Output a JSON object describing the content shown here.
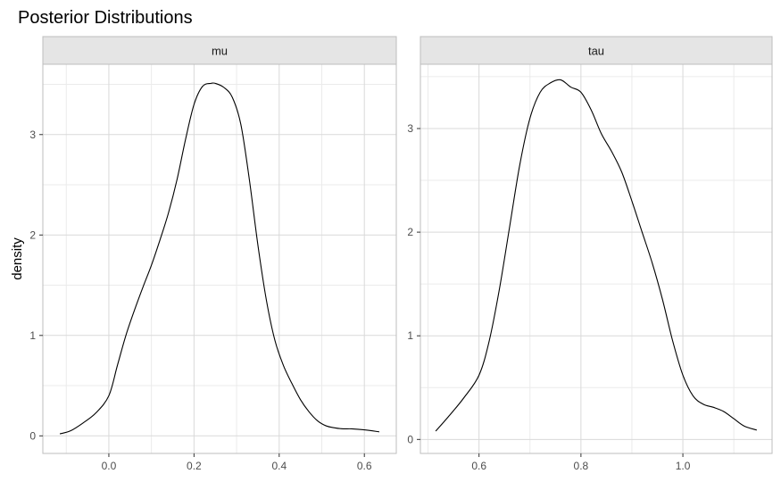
{
  "chart_data": {
    "type": "line",
    "title": "Posterior Distributions",
    "ylabel": "density",
    "xlabel": "",
    "facets": [
      {
        "name": "mu",
        "xlim": [
          -0.155,
          0.675
        ],
        "ylim": [
          -0.175,
          3.7
        ],
        "x_ticks": [
          0.0,
          0.2,
          0.4,
          0.6
        ],
        "x_tick_labels": [
          "0.0",
          "0.2",
          "0.4",
          "0.6"
        ],
        "y_ticks": [
          0,
          1,
          2,
          3
        ],
        "y_tick_labels": [
          "0",
          "1",
          "2",
          "3"
        ],
        "x": [
          -0.115,
          -0.09,
          -0.06,
          -0.03,
          0.0,
          0.02,
          0.04,
          0.06,
          0.08,
          0.1,
          0.12,
          0.14,
          0.16,
          0.18,
          0.2,
          0.22,
          0.24,
          0.25,
          0.27,
          0.29,
          0.31,
          0.33,
          0.35,
          0.37,
          0.39,
          0.41,
          0.43,
          0.45,
          0.47,
          0.49,
          0.51,
          0.53,
          0.55,
          0.57,
          0.6,
          0.635
        ],
        "y": [
          0.02,
          0.05,
          0.13,
          0.23,
          0.4,
          0.7,
          1.0,
          1.25,
          1.48,
          1.7,
          1.95,
          2.22,
          2.55,
          2.95,
          3.3,
          3.48,
          3.51,
          3.51,
          3.47,
          3.37,
          3.1,
          2.55,
          1.9,
          1.35,
          0.95,
          0.7,
          0.52,
          0.36,
          0.24,
          0.15,
          0.1,
          0.08,
          0.07,
          0.07,
          0.06,
          0.04
        ]
      },
      {
        "name": "tau",
        "xlim": [
          0.485,
          1.175
        ],
        "ylim": [
          -0.135,
          3.62
        ],
        "x_ticks": [
          0.6,
          0.8,
          1.0
        ],
        "x_tick_labels": [
          "0.6",
          "0.8",
          "1.0"
        ],
        "y_ticks": [
          0,
          1,
          2,
          3
        ],
        "y_tick_labels": [
          "0",
          "1",
          "2",
          "3"
        ],
        "x": [
          0.515,
          0.54,
          0.57,
          0.6,
          0.62,
          0.64,
          0.66,
          0.68,
          0.7,
          0.72,
          0.74,
          0.76,
          0.78,
          0.8,
          0.82,
          0.84,
          0.86,
          0.88,
          0.9,
          0.92,
          0.94,
          0.96,
          0.98,
          1.0,
          1.02,
          1.04,
          1.06,
          1.08,
          1.1,
          1.12,
          1.145
        ],
        "y": [
          0.08,
          0.22,
          0.4,
          0.62,
          0.95,
          1.45,
          2.05,
          2.65,
          3.1,
          3.35,
          3.44,
          3.47,
          3.4,
          3.35,
          3.18,
          2.95,
          2.78,
          2.58,
          2.3,
          2.0,
          1.7,
          1.35,
          0.95,
          0.62,
          0.42,
          0.34,
          0.31,
          0.27,
          0.2,
          0.13,
          0.09
        ]
      }
    ],
    "grid": true,
    "legend": "none",
    "colors": {
      "line": "#000000",
      "grid_major": "#d9d9d9",
      "grid_minor": "#ebebeb",
      "panel_border": "#bdbdbd",
      "strip_fill": "#e5e5e5",
      "strip_border": "#bdbdbd",
      "tick": "#333333"
    }
  }
}
